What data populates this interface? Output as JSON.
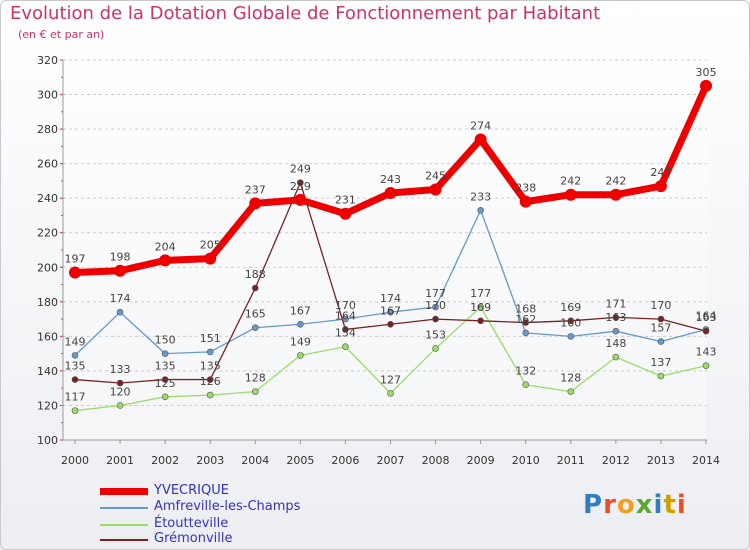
{
  "title": "Evolution de la Dotation Globale de Fonctionnement par Habitant",
  "subtitle": "(en € et par an)",
  "logo_text": "Proxiti",
  "colors": {
    "title": "#cc3366",
    "yvecrique": "#ee0000",
    "amfreville": "#6699cc",
    "etoutteville": "#99dd66",
    "gremonville": "#772222",
    "grid": "#cccccc"
  },
  "chart_data": {
    "type": "line",
    "title": "Evolution de la Dotation Globale de Fonctionnement par Habitant",
    "subtitle": "(en € et par an)",
    "x": [
      "2000",
      "2001",
      "2002",
      "2003",
      "2004",
      "2005",
      "2006",
      "2007",
      "2008",
      "2009",
      "2010",
      "2011",
      "2012",
      "2013",
      "2014"
    ],
    "ylim": [
      100,
      320
    ],
    "yticks": [
      100,
      120,
      140,
      160,
      180,
      200,
      220,
      240,
      260,
      280,
      300,
      320
    ],
    "grid": "horizontal dashed",
    "legend_position": "bottom-left",
    "series": [
      {
        "name": "YVECRIQUE",
        "color": "#ee0000",
        "width": 7,
        "values": [
          197,
          198,
          204,
          205,
          237,
          239,
          231,
          243,
          245,
          274,
          238,
          242,
          242,
          247,
          305
        ],
        "labels": [
          "197",
          "198",
          "204",
          "205",
          "237",
          "239",
          "231",
          "243",
          "245",
          "274",
          "238",
          "242",
          "242",
          "247",
          "305"
        ]
      },
      {
        "name": "Amfreville-les-Champs",
        "color": "#6699cc",
        "width": 1.3,
        "values": [
          149,
          174,
          150,
          151,
          165,
          167,
          170,
          174,
          177,
          233,
          162,
          160,
          163,
          157,
          164
        ],
        "labels": [
          "149",
          "174",
          "150",
          "151",
          "165",
          "167",
          "170",
          "174",
          "177",
          "233",
          "162",
          "160",
          "163",
          "157",
          "164"
        ]
      },
      {
        "name": "Étoutteville",
        "color": "#99dd66",
        "width": 1.3,
        "values": [
          117,
          120,
          125,
          126,
          128,
          149,
          154,
          127,
          153,
          177,
          132,
          128,
          148,
          137,
          143
        ],
        "labels": [
          "117",
          "120",
          "125",
          "126",
          "128",
          "149",
          "154",
          "127",
          "153",
          "177",
          "132",
          "128",
          "148",
          "137",
          "143"
        ]
      },
      {
        "name": "Grémonville",
        "color": "#772222",
        "width": 1.3,
        "values": [
          135,
          133,
          135,
          135,
          188,
          249,
          164,
          167,
          170,
          169,
          168,
          169,
          171,
          170,
          163
        ],
        "labels": [
          "135",
          "133",
          "135",
          "135",
          "188",
          "249",
          "164",
          "167",
          "170",
          "169",
          "168",
          "169",
          "171",
          "170",
          "163"
        ]
      }
    ]
  }
}
